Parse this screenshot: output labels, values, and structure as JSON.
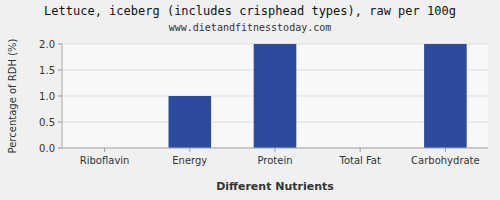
{
  "chart_data": {
    "type": "bar",
    "title": "Lettuce, iceberg (includes crisphead types), raw per 100g",
    "subtitle": "www.dietandfitnesstoday.com",
    "xlabel": "Different Nutrients",
    "ylabel": "Percentage of RDH (%)",
    "categories": [
      "Riboflavin",
      "Energy",
      "Protein",
      "Total Fat",
      "Carbohydrate"
    ],
    "values": [
      0,
      1,
      2,
      0,
      2
    ],
    "color": "#2d4b9e",
    "ylim": [
      0,
      2.0
    ],
    "yticks": [
      {
        "value": 0,
        "label": "0.0"
      },
      0.5,
      {
        "value": 1,
        "label": "1.0"
      },
      1.5,
      {
        "value": 2,
        "label": "2.0"
      }
    ],
    "grid": true
  }
}
